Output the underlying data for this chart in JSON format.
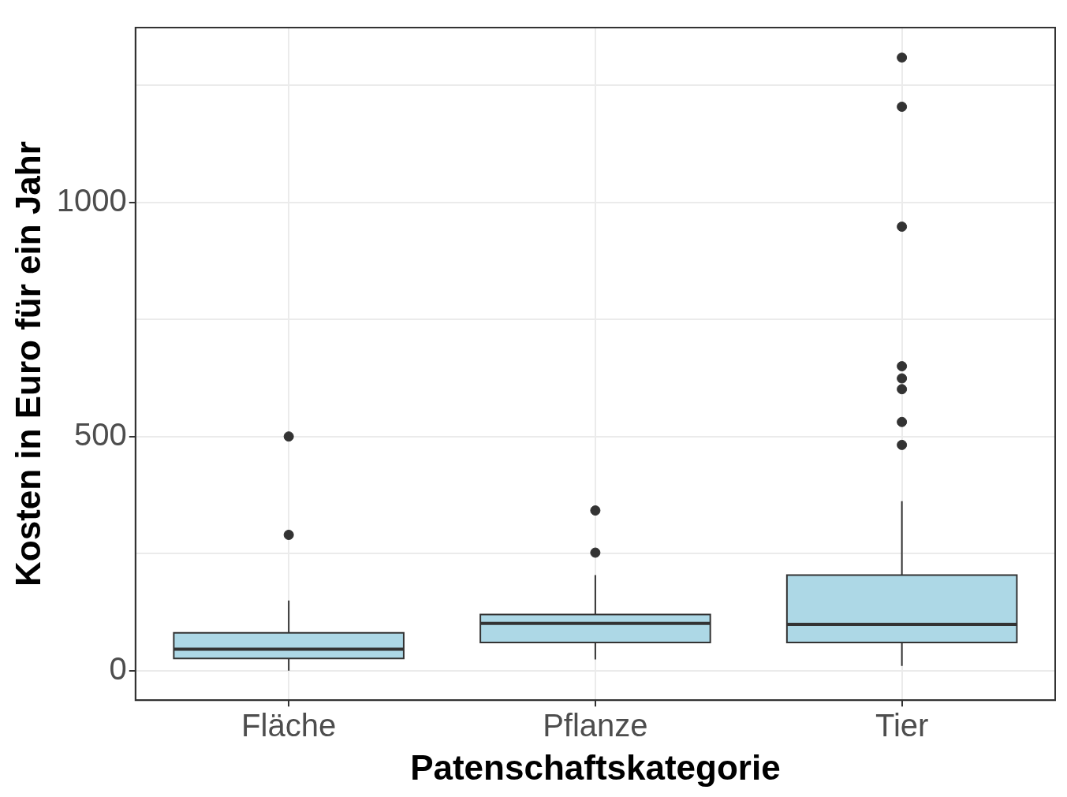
{
  "chart_data": {
    "type": "box",
    "xlabel": "Patenschaftskategorie",
    "ylabel": "Kosten in Euro für ein Jahr",
    "categories": [
      "Fläche",
      "Pflanze",
      "Tier"
    ],
    "ylim": [
      -63,
      1373
    ],
    "yticks": [
      0,
      {
        "value": 250,
        "label": null
      },
      500,
      {
        "value": 750,
        "label": null
      },
      1000,
      {
        "value": 1250,
        "label": null
      }
    ],
    "grid": true,
    "legend": false,
    "series": [
      {
        "color": "#add8e6",
        "boxes": [
          {
            "low": 0,
            "q1": 26,
            "median": 46,
            "q3": 81,
            "high": 150,
            "outliers": [
              290,
              500
            ]
          },
          {
            "low": 24,
            "q1": 60,
            "median": 101,
            "q3": 120,
            "high": 204,
            "outliers": [
              252,
              342
            ]
          },
          {
            "low": 10,
            "q1": 60,
            "median": 99,
            "q3": 204,
            "high": 362,
            "outliers": [
              482,
              531,
              601,
              624,
              650,
              948,
              1204,
              1309
            ]
          }
        ]
      }
    ]
  }
}
